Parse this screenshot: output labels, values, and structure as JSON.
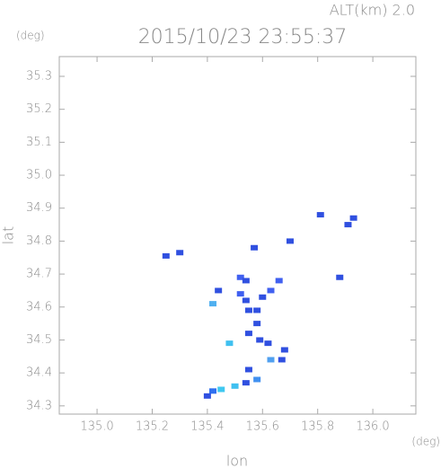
{
  "chart_data": {
    "type": "scatter",
    "title": "2015/10/23 23:55:37",
    "annotation": "ALT(km) 2.0",
    "xlabel": "lon",
    "ylabel": "lat",
    "xunit": "(deg)",
    "yunit": "(deg)",
    "x": [
      135.3,
      135.25,
      135.81,
      135.93,
      135.91,
      135.57,
      135.7,
      135.88,
      135.52,
      135.54,
      135.44,
      135.52,
      135.54,
      135.6,
      135.63,
      135.66,
      135.55,
      135.58,
      135.42,
      135.58,
      135.55,
      135.59,
      135.48,
      135.62,
      135.68,
      135.67,
      135.63,
      135.55,
      135.58,
      135.54,
      135.5,
      135.45,
      135.42,
      135.4
    ],
    "y": [
      34.765,
      34.755,
      34.88,
      34.87,
      34.85,
      34.78,
      34.8,
      34.69,
      34.69,
      34.68,
      34.65,
      34.64,
      34.62,
      34.63,
      34.65,
      34.68,
      34.59,
      34.59,
      34.61,
      34.55,
      34.52,
      34.5,
      34.49,
      34.49,
      34.47,
      34.44,
      34.44,
      34.41,
      34.38,
      34.37,
      34.36,
      34.35,
      34.345,
      34.33
    ],
    "colors": [
      "#3050e0",
      "#3050e0",
      "#3050e0",
      "#3050e0",
      "#3050e0",
      "#3050e0",
      "#3050e0",
      "#3050e0",
      "#4060f0",
      "#3050e0",
      "#3050e0",
      "#4060f0",
      "#3050e0",
      "#3050e0",
      "#4060f0",
      "#4060f0",
      "#3050e0",
      "#3050e0",
      "#50b0f0",
      "#3050e0",
      "#3050e0",
      "#3050e0",
      "#40c0f0",
      "#3050e0",
      "#3050e0",
      "#3050e0",
      "#50a0f0",
      "#3050e0",
      "#4090f0",
      "#3050e0",
      "#40c0f0",
      "#40c8f0",
      "#3070f0",
      "#3050e0"
    ],
    "xlim": [
      134.863,
      136.156
    ],
    "ylim": [
      34.275,
      35.36
    ],
    "xticks": [
      {
        "value": 135.0,
        "label": "135.0"
      },
      135.2,
      135.4,
      135.6,
      135.8,
      {
        "value": 136.0,
        "label": "136.0"
      }
    ],
    "yticks": [
      34.3,
      34.4,
      34.5,
      34.6,
      34.7,
      34.8,
      34.9,
      {
        "value": 35.0,
        "label": "35.0"
      },
      35.1,
      35.2,
      35.3
    ]
  }
}
